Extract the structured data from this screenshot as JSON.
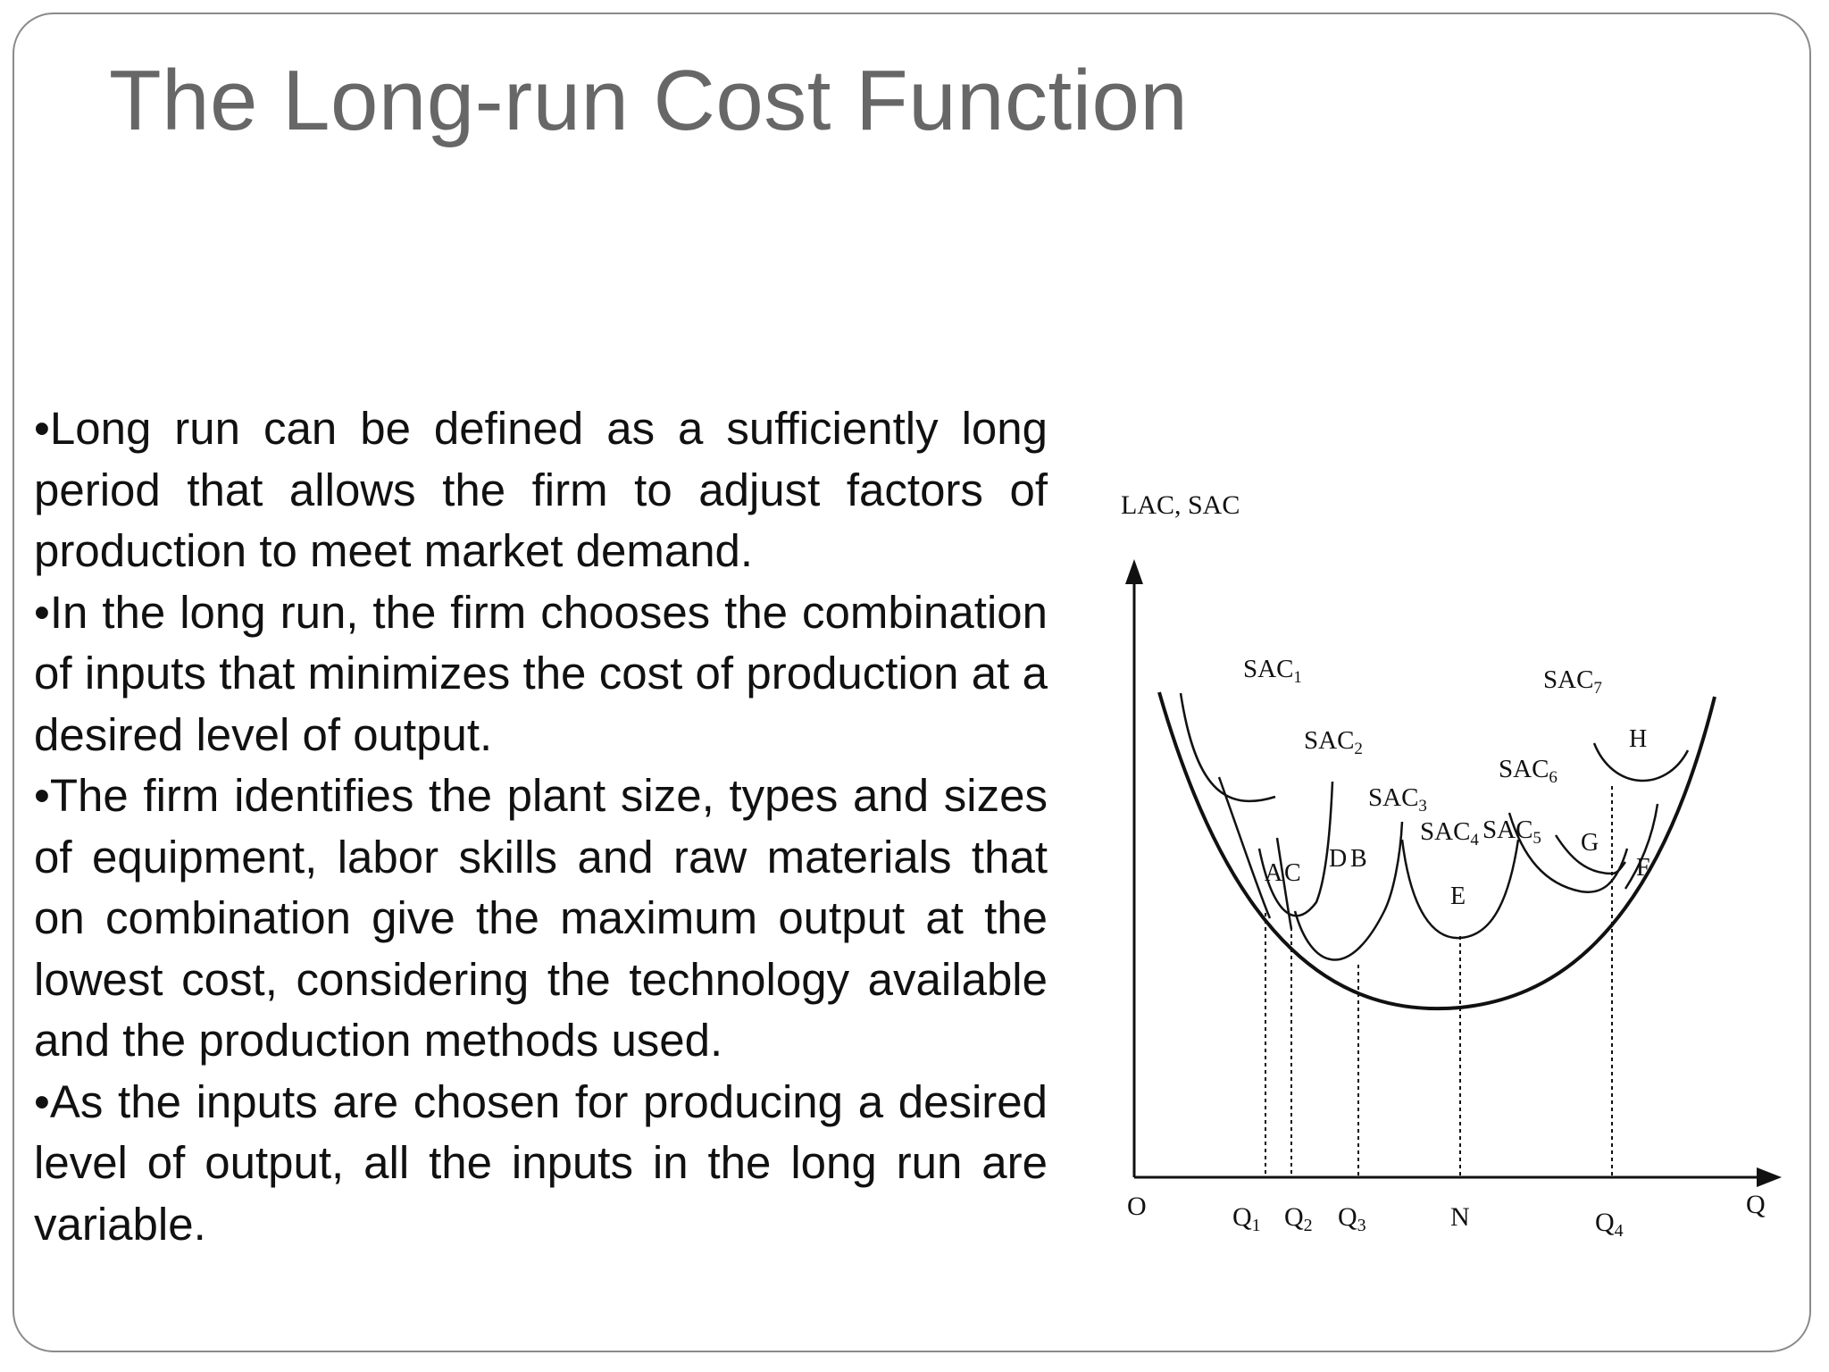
{
  "slide": {
    "title": "The Long-run Cost Function",
    "bullets": [
      "•Long run can be defined as a sufficiently long period that allows the firm to adjust factors of production to meet market demand.",
      "•In the long run, the firm chooses the combination of inputs that minimizes the cost of production at a desired level of output.",
      "•The firm identifies the plant size, types and sizes of equipment, labor skills and raw materials that on combination give the maximum output at the lowest cost, considering the technology available and the production methods used.",
      "•As the inputs are chosen for producing a desired level of output, all the inputs in the long run are variable."
    ]
  },
  "diagram": {
    "y_axis_label": "LAC, SAC",
    "x_axis_label": "Q",
    "origin_label": "O",
    "x_ticks": [
      "Q",
      "1",
      "Q",
      "2",
      "Q",
      "3",
      "N",
      "Q",
      "4"
    ],
    "curve_labels": {
      "sac1": "SAC",
      "sac1_sub": "1",
      "sac2": "SAC",
      "sac2_sub": "2",
      "sac3": "SAC",
      "sac3_sub": "3",
      "sac4": "SAC",
      "sac4_sub": "4",
      "sac5": "SAC",
      "sac5_sub": "5",
      "sac6": "SAC",
      "sac6_sub": "6",
      "sac7": "SAC",
      "sac7_sub": "7"
    },
    "point_labels": [
      "A",
      "C",
      "D",
      "B",
      "E",
      "G",
      "F",
      "H"
    ]
  }
}
